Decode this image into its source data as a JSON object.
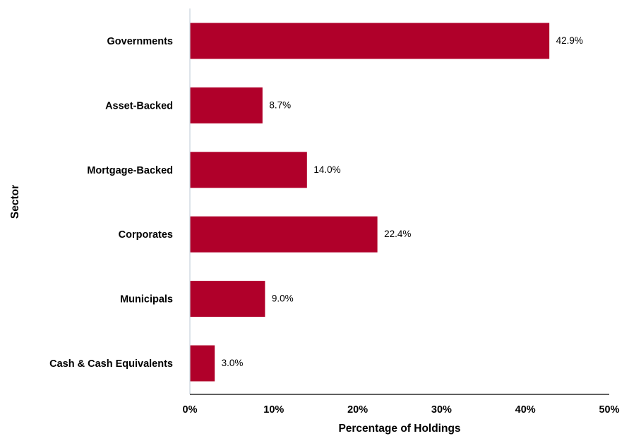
{
  "chart_data": {
    "type": "bar",
    "orientation": "horizontal",
    "categories": [
      "Governments",
      "Asset-Backed",
      "Mortgage-Backed",
      "Corporates",
      "Municipals",
      "Cash & Cash Equivalents"
    ],
    "values": [
      42.9,
      8.7,
      14.0,
      22.4,
      9.0,
      3.0
    ],
    "data_labels": [
      "42.9%",
      "8.7%",
      "14.0%",
      "22.4%",
      "9.0%",
      "3.0%"
    ],
    "xlabel": "Percentage of Holdings",
    "ylabel": "Sector",
    "xlim": [
      0,
      50
    ],
    "xticks": [
      0,
      10,
      20,
      30,
      40,
      50
    ],
    "xtick_labels": [
      "0%",
      "10%",
      "20%",
      "30%",
      "40%",
      "50%"
    ],
    "bar_color": "#b0002a",
    "grid": false,
    "legend": "none"
  }
}
